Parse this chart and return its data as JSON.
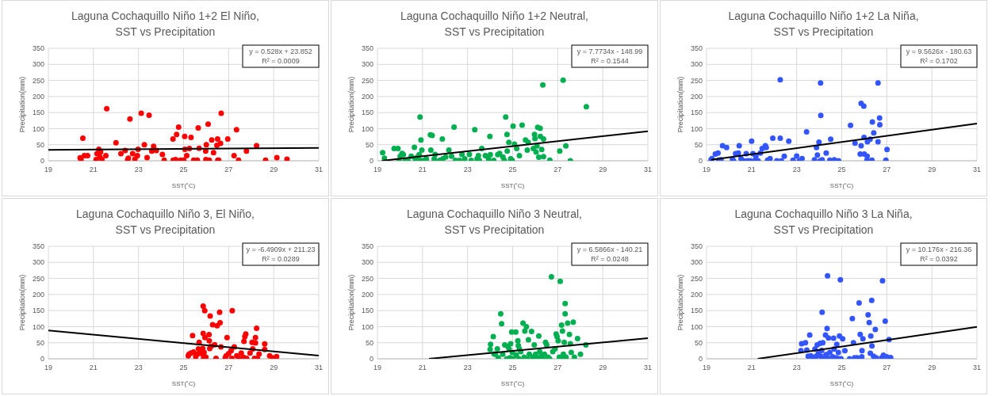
{
  "chart_data": [
    {
      "type": "scatter",
      "title": "Laguna Cochaquillo Niño 1+2 El Niño,\nSST vs Precipitation",
      "xlabel": "SST(˚C)",
      "ylabel": "Precipitation(mm)",
      "xlim": [
        19,
        31
      ],
      "xticks": [
        19,
        21,
        23,
        25,
        27,
        29,
        31
      ],
      "ylim": [
        0,
        350
      ],
      "yticks": [
        0,
        50,
        100,
        150,
        200,
        250,
        300,
        350
      ],
      "grid": true,
      "marker": "circle",
      "line_style": "solid",
      "annotations": [
        "y = 0.528x + 23.852",
        "R² = 0.0009"
      ],
      "series": [
        {
          "type": "scatter",
          "color": "#ff0000",
          "x": [
            20.41,
            20.45,
            20.53,
            20.6,
            20.74,
            21.12,
            21.16,
            21.24,
            21.29,
            21.32,
            21.38,
            21.55,
            21.59,
            22.0,
            22.22,
            22.41,
            22.52,
            22.55,
            22.62,
            22.74,
            22.84,
            22.95,
            22.98,
            23.12,
            23.26,
            23.38,
            23.47,
            23.59,
            23.67,
            23.79,
            24.06,
            24.14,
            24.53,
            24.54,
            24.65,
            24.69,
            24.78,
            24.87,
            25.01,
            25.05,
            25.06,
            25.14,
            25.26,
            25.33,
            25.45,
            25.61,
            25.65,
            25.69,
            25.98,
            25.99,
            26.01,
            26.09,
            26.14,
            26.25,
            26.33,
            26.48,
            26.51,
            26.52,
            26.56,
            26.64,
            26.67,
            26.96,
            27.24,
            27.35,
            27.44,
            27.79,
            28.24,
            28.64,
            29.14,
            29.59
          ],
          "values": [
            9,
            4,
            70,
            16,
            16,
            4,
            22,
            36,
            12,
            28,
            4,
            16,
            162,
            56,
            22,
            32,
            4,
            8,
            130,
            22,
            5,
            16,
            36,
            148,
            50,
            10,
            142,
            30,
            45,
            32,
            20,
            2,
            68,
            2,
            4,
            82,
            105,
            2,
            2,
            76,
            36,
            16,
            38,
            73,
            2,
            2,
            102,
            39,
            30,
            4,
            50,
            114,
            2,
            65,
            25,
            48,
            68,
            2,
            2,
            54,
            148,
            68,
            16,
            97,
            2,
            30,
            47,
            2,
            10,
            5
          ]
        },
        {
          "type": "line",
          "color": "#000000",
          "x": [
            19,
            31
          ],
          "values": [
            34,
            40
          ],
          "marker": "none"
        }
      ]
    },
    {
      "type": "scatter",
      "title": "Laguna Cochaquillo Niño 1+2 Neutral,\nSST vs Precipitation",
      "xlabel": "SST(˚C)",
      "ylabel": "Precipitation(mm)",
      "xlim": [
        19,
        31
      ],
      "xticks": [
        19,
        21,
        23,
        25,
        27,
        29,
        31
      ],
      "ylim": [
        0,
        350
      ],
      "yticks": [
        0,
        50,
        100,
        150,
        200,
        250,
        300,
        350
      ],
      "grid": true,
      "marker": "circle",
      "line_style": "solid",
      "annotations": [
        "y = 7.7734x - 148.99",
        "R² = 0.1544"
      ],
      "series": [
        {
          "type": "scatter",
          "color": "#00b050",
          "x": [
            19.23,
            19.31,
            19.74,
            19.91,
            19.96,
            20.01,
            20.09,
            20.15,
            20.23,
            20.35,
            20.5,
            20.64,
            20.68,
            20.76,
            20.85,
            20.89,
            20.9,
            20.93,
            20.97,
            21.08,
            21.17,
            21.35,
            21.37,
            21.43,
            21.52,
            21.56,
            21.76,
            21.88,
            21.9,
            22.03,
            22.17,
            22.29,
            22.4,
            22.46,
            22.64,
            22.75,
            22.87,
            23.08,
            23.16,
            23.32,
            23.42,
            23.48,
            23.52,
            23.63,
            23.79,
            23.93,
            23.99,
            24.01,
            24.16,
            24.34,
            24.42,
            24.57,
            24.63,
            24.69,
            24.75,
            24.76,
            24.83,
            24.91,
            24.98,
            25.02,
            25.08,
            25.18,
            25.3,
            25.42,
            25.57,
            25.65,
            25.69,
            25.92,
            25.97,
            25.99,
            26.04,
            26.08,
            26.11,
            26.16,
            26.22,
            26.23,
            26.29,
            26.34,
            26.37,
            26.37,
            26.65,
            27.09,
            27.24,
            27.36,
            27.56,
            28.27
          ],
          "values": [
            25,
            8,
            38,
            38,
            1,
            14,
            23,
            19,
            1,
            1,
            14,
            42,
            6,
            11,
            19,
            136,
            1,
            65,
            33,
            1,
            6,
            81,
            33,
            79,
            6,
            20,
            1,
            68,
            6,
            12,
            33,
            14,
            105,
            1,
            1,
            20,
            6,
            20,
            1,
            97,
            6,
            16,
            1,
            38,
            16,
            6,
            76,
            19,
            1,
            19,
            23,
            12,
            1,
            136,
            82,
            30,
            57,
            6,
            1,
            108,
            52,
            38,
            16,
            111,
            65,
            33,
            57,
            38,
            82,
            69,
            27,
            46,
            104,
            11,
            101,
            76,
            35,
            236,
            68,
            13,
            2,
            30,
            251,
            46,
            0,
            168
          ]
        },
        {
          "type": "line",
          "color": "#000000",
          "x": [
            19.2,
            31
          ],
          "values": [
            0,
            92
          ],
          "marker": "none"
        }
      ]
    },
    {
      "type": "scatter",
      "title": "Laguna Cochaquillo Niño 1+2 La Niña,\nSST vs Precipitation",
      "xlabel": "SST(˚C)",
      "ylabel": "Precipitation(mm)",
      "xlim": [
        19,
        31
      ],
      "xticks": [
        19,
        21,
        23,
        25,
        27,
        29,
        31
      ],
      "ylim": [
        0,
        350
      ],
      "yticks": [
        0,
        50,
        100,
        150,
        200,
        250,
        300,
        350
      ],
      "grid": true,
      "marker": "circle",
      "line_style": "solid",
      "annotations": [
        "y = 9.5626x - 180.63",
        "R² = 0.1702"
      ],
      "series": [
        {
          "type": "scatter",
          "color": "#3355ff",
          "x": [
            19.2,
            19.24,
            19.39,
            19.51,
            19.54,
            19.64,
            19.71,
            19.89,
            20.15,
            20.2,
            20.29,
            20.41,
            20.45,
            20.53,
            20.65,
            20.76,
            20.82,
            20.94,
            21.0,
            21.06,
            21.12,
            21.19,
            21.29,
            21.39,
            21.47,
            21.61,
            21.65,
            21.71,
            21.82,
            21.94,
            22.12,
            22.27,
            22.27,
            22.32,
            22.45,
            22.65,
            22.84,
            23.0,
            23.12,
            23.24,
            23.44,
            23.79,
            23.88,
            23.92,
            23.99,
            24.04,
            24.06,
            24.07,
            24.13,
            24.31,
            24.47,
            24.51,
            24.67,
            24.86,
            25.39,
            25.59,
            25.82,
            25.86,
            25.86,
            25.98,
            25.99,
            26.0,
            26.12,
            26.13,
            26.14,
            26.26,
            26.34,
            26.36,
            26.42,
            26.61,
            26.61,
            26.68,
            26.69,
            26.96,
            27.01
          ],
          "values": [
            3,
            7,
            21,
            24,
            2,
            3,
            47,
            41,
            5,
            0,
            22,
            24,
            47,
            7,
            0,
            22,
            0,
            0,
            61,
            22,
            0,
            14,
            0,
            24,
            38,
            47,
            41,
            2,
            7,
            70,
            0,
            70,
            252,
            0,
            14,
            61,
            2,
            15,
            0,
            7,
            90,
            3,
            41,
            18,
            58,
            0,
            242,
            141,
            3,
            24,
            2,
            67,
            3,
            0,
            110,
            55,
            21,
            179,
            47,
            170,
            73,
            21,
            2,
            14,
            59,
            67,
            2,
            121,
            87,
            242,
            59,
            133,
            112,
            2,
            35
          ]
        },
        {
          "type": "line",
          "color": "#000000",
          "x": [
            19.2,
            31
          ],
          "values": [
            3,
            116
          ],
          "marker": "none"
        }
      ]
    },
    {
      "type": "scatter",
      "title": "Laguna Cochaquillo Niño 3, El Niño,\nSST vs Precipitation",
      "xlabel": "SST(˚C)",
      "ylabel": "Precipitation(mm)",
      "xlim": [
        19,
        31
      ],
      "xticks": [
        19,
        21,
        23,
        25,
        27,
        29,
        31
      ],
      "ylim": [
        0,
        350
      ],
      "yticks": [
        0,
        50,
        100,
        150,
        200,
        250,
        300,
        350
      ],
      "grid": true,
      "marker": "circle",
      "line_style": "solid",
      "annotations": [
        "y = -6.4909x + 211.23",
        "R² = 0.0289"
      ],
      "series": [
        {
          "type": "scatter",
          "color": "#ff0000",
          "x": [
            25.21,
            25.24,
            25.33,
            25.4,
            25.44,
            25.54,
            25.61,
            25.66,
            25.69,
            25.75,
            25.81,
            25.85,
            25.87,
            25.87,
            25.89,
            25.91,
            25.94,
            25.95,
            25.99,
            26.13,
            26.14,
            26.18,
            26.16,
            26.22,
            26.29,
            26.38,
            26.44,
            26.49,
            26.6,
            26.62,
            26.66,
            26.85,
            26.89,
            26.93,
            27.0,
            27.11,
            27.14,
            27.16,
            27.25,
            27.36,
            27.46,
            27.56,
            27.65,
            27.68,
            27.72,
            27.76,
            27.8,
            27.95,
            28.04,
            28.07,
            28.15,
            28.19,
            28.19,
            28.24,
            28.28,
            28.35,
            28.6,
            28.6,
            28.82,
            28.95,
            29.13
          ],
          "values": [
            9,
            14,
            18,
            72,
            21,
            7,
            14,
            31,
            51,
            22,
            16,
            32,
            164,
            79,
            3,
            20,
            150,
            66,
            5,
            75,
            56,
            133,
            32,
            39,
            106,
            44,
            1,
            103,
            145,
            112,
            37,
            3,
            9,
            66,
            16,
            25,
            1,
            150,
            37,
            9,
            1,
            18,
            5,
            54,
            69,
            77,
            1,
            18,
            51,
            31,
            1,
            66,
            49,
            95,
            1,
            15,
            46,
            29,
            9,
            3,
            7
          ]
        },
        {
          "type": "line",
          "color": "#000000",
          "x": [
            19,
            31
          ],
          "values": [
            88,
            10
          ],
          "marker": "none"
        }
      ]
    },
    {
      "type": "scatter",
      "title": "Laguna Cochaquillo Niño 3 Neutral,\nSST vs Precipitation",
      "xlabel": "SST(˚C)",
      "ylabel": "Precipitation(mm)",
      "xlim": [
        19,
        31
      ],
      "xticks": [
        19,
        21,
        23,
        25,
        27,
        29,
        31
      ],
      "ylim": [
        0,
        350
      ],
      "yticks": [
        0,
        50,
        100,
        150,
        200,
        250,
        300,
        350
      ],
      "grid": true,
      "marker": "circle",
      "line_style": "solid",
      "annotations": [
        "y = 6.5866x - 140.21",
        "R² = 0.0248"
      ],
      "series": [
        {
          "type": "scatter",
          "color": "#00b050",
          "x": [
            24.0,
            24.02,
            24.14,
            24.18,
            24.23,
            24.32,
            24.36,
            24.47,
            24.51,
            24.56,
            24.65,
            24.74,
            24.79,
            24.84,
            24.88,
            24.91,
            24.96,
            24.99,
            25.02,
            25.14,
            25.16,
            25.23,
            25.25,
            25.28,
            25.3,
            25.36,
            25.46,
            25.51,
            25.54,
            25.61,
            25.66,
            25.7,
            25.74,
            25.84,
            25.9,
            25.96,
            26.02,
            26.11,
            26.16,
            26.2,
            26.28,
            26.34,
            26.41,
            26.46,
            26.51,
            26.57,
            26.64,
            26.72,
            26.78,
            26.88,
            26.93,
            26.97,
            27.02,
            27.07,
            27.11,
            27.14,
            27.17,
            27.21,
            27.25,
            27.29,
            27.31,
            27.33,
            27.33,
            27.37,
            27.44,
            27.52,
            27.56,
            27.6,
            27.69,
            27.74,
            27.88,
            28.01,
            28.25
          ],
          "values": [
            29,
            45,
            69,
            15,
            14,
            31,
            3,
            140,
            109,
            14,
            43,
            0,
            39,
            31,
            3,
            47,
            83,
            20,
            0,
            83,
            12,
            56,
            41,
            0,
            31,
            22,
            111,
            5,
            86,
            100,
            0,
            59,
            14,
            85,
            5,
            43,
            14,
            3,
            71,
            22,
            9,
            0,
            14,
            51,
            43,
            5,
            0,
            255,
            22,
            31,
            77,
            69,
            56,
            5,
            241,
            0,
            105,
            86,
            14,
            51,
            0,
            172,
            140,
            5,
            111,
            76,
            47,
            20,
            114,
            5,
            63,
            14,
            43
          ]
        },
        {
          "type": "line",
          "color": "#000000",
          "x": [
            21.29,
            31
          ],
          "values": [
            0,
            64
          ],
          "marker": "none"
        }
      ]
    },
    {
      "type": "scatter",
      "title": "Laguna Cochaquillo Niño 3 La Niña,\nSST vs Precipitation",
      "xlabel": "SST(˚C)",
      "ylabel": "Precipitation(mm)",
      "xlim": [
        19,
        31
      ],
      "xticks": [
        19,
        21,
        23,
        25,
        27,
        29,
        31
      ],
      "ylim": [
        0,
        350
      ],
      "yticks": [
        0,
        50,
        100,
        150,
        200,
        250,
        300,
        350
      ],
      "grid": true,
      "marker": "circle",
      "line_style": "solid",
      "annotations": [
        "y = 10.176x - 216.36",
        "R² = 0.0392"
      ],
      "series": [
        {
          "type": "scatter",
          "color": "#3355ff",
          "x": [
            23.19,
            23.22,
            23.39,
            23.45,
            23.51,
            23.58,
            23.63,
            23.72,
            23.81,
            23.87,
            23.91,
            23.96,
            24.04,
            24.07,
            24.11,
            24.13,
            24.16,
            24.21,
            24.28,
            24.3,
            24.35,
            24.37,
            24.38,
            24.41,
            24.47,
            24.6,
            24.64,
            24.66,
            24.76,
            24.78,
            24.85,
            24.87,
            24.9,
            24.94,
            24.97,
            25.04,
            25.14,
            25.35,
            25.47,
            25.52,
            25.57,
            25.68,
            25.77,
            25.82,
            25.89,
            25.9,
            25.94,
            26.17,
            26.22,
            26.27,
            26.29,
            26.33,
            26.34,
            26.41,
            26.49,
            26.53,
            26.77,
            26.81,
            26.85,
            26.93,
            27.0,
            27.1,
            27.17
          ],
          "values": [
            25,
            47,
            50,
            27,
            8,
            74,
            9,
            3,
            30,
            8,
            43,
            16,
            48,
            8,
            26,
            145,
            50,
            0,
            74,
            13,
            94,
            258,
            3,
            65,
            20,
            6,
            64,
            30,
            3,
            45,
            20,
            0,
            71,
            246,
            0,
            62,
            25,
            0,
            125,
            50,
            3,
            3,
            174,
            76,
            6,
            25,
            62,
            137,
            113,
            17,
            71,
            182,
            40,
            8,
            91,
            3,
            3,
            243,
            11,
            117,
            6,
            60,
            4
          ]
        },
        {
          "type": "line",
          "color": "#000000",
          "x": [
            21.27,
            31
          ],
          "values": [
            0,
            99
          ],
          "marker": "none"
        }
      ]
    }
  ]
}
